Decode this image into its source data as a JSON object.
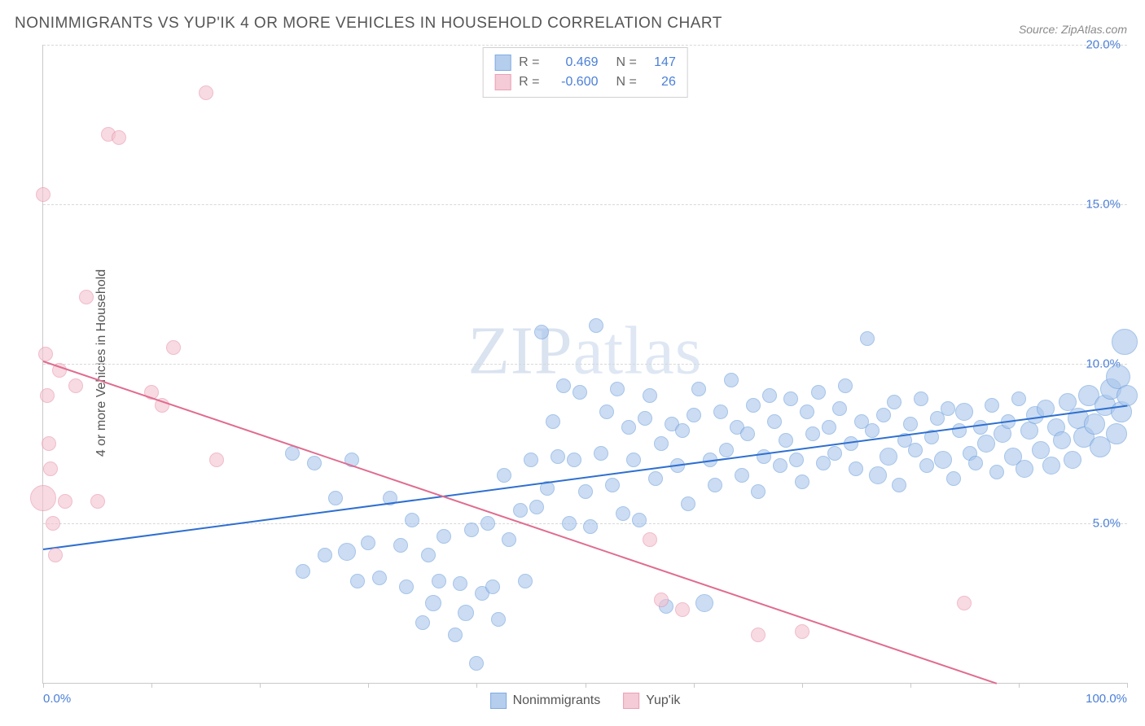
{
  "title": "NONIMMIGRANTS VS YUP'IK 4 OR MORE VEHICLES IN HOUSEHOLD CORRELATION CHART",
  "source": "Source: ZipAtlas.com",
  "watermark": "ZIPatlas",
  "ylabel": "4 or more Vehicles in Household",
  "chart": {
    "type": "scatter",
    "xlim": [
      0,
      100
    ],
    "ylim": [
      0,
      20
    ],
    "xtick_positions": [
      0,
      10,
      20,
      30,
      40,
      50,
      60,
      70,
      80,
      90,
      100
    ],
    "xtick_labels": {
      "0": "0.0%",
      "100": "100.0%"
    },
    "ytick_positions": [
      5,
      10,
      15,
      20
    ],
    "ytick_labels": {
      "5": "5.0%",
      "10": "10.0%",
      "15": "15.0%",
      "20": "20.0%"
    },
    "background_color": "#ffffff",
    "grid_color": "#d8d8d8",
    "axis_color": "#c9c9c9",
    "axis_label_color": "#4a7fd8",
    "title_color": "#555555",
    "title_fontsize": 19,
    "label_fontsize": 16,
    "tick_fontsize": 15
  },
  "series": [
    {
      "name": "Nonimmigrants",
      "fill_color": "#a9c6ec",
      "fill_opacity": 0.6,
      "stroke_color": "#6b9ddb",
      "stroke_width": 1,
      "r_value": "0.469",
      "n_value": "147",
      "trend": {
        "x1": 0,
        "y1": 4.2,
        "x2": 100,
        "y2": 8.7,
        "color": "#2e6fd0",
        "width": 2
      },
      "points": [
        {
          "x": 23,
          "y": 7.2,
          "r": 9
        },
        {
          "x": 24,
          "y": 3.5,
          "r": 9
        },
        {
          "x": 25,
          "y": 6.9,
          "r": 9
        },
        {
          "x": 26,
          "y": 4.0,
          "r": 9
        },
        {
          "x": 27,
          "y": 5.8,
          "r": 9
        },
        {
          "x": 28,
          "y": 4.1,
          "r": 11
        },
        {
          "x": 28.5,
          "y": 7.0,
          "r": 9
        },
        {
          "x": 29,
          "y": 3.2,
          "r": 9
        },
        {
          "x": 30,
          "y": 4.4,
          "r": 9
        },
        {
          "x": 31,
          "y": 3.3,
          "r": 9
        },
        {
          "x": 32,
          "y": 5.8,
          "r": 9
        },
        {
          "x": 33,
          "y": 4.3,
          "r": 9
        },
        {
          "x": 33.5,
          "y": 3.0,
          "r": 9
        },
        {
          "x": 34,
          "y": 5.1,
          "r": 9
        },
        {
          "x": 35,
          "y": 1.9,
          "r": 9
        },
        {
          "x": 35.5,
          "y": 4.0,
          "r": 9
        },
        {
          "x": 36,
          "y": 2.5,
          "r": 10
        },
        {
          "x": 36.5,
          "y": 3.2,
          "r": 9
        },
        {
          "x": 37,
          "y": 4.6,
          "r": 9
        },
        {
          "x": 38,
          "y": 1.5,
          "r": 9
        },
        {
          "x": 38.5,
          "y": 3.1,
          "r": 9
        },
        {
          "x": 39,
          "y": 2.2,
          "r": 10
        },
        {
          "x": 39.5,
          "y": 4.8,
          "r": 9
        },
        {
          "x": 40,
          "y": 0.6,
          "r": 9
        },
        {
          "x": 40.5,
          "y": 2.8,
          "r": 9
        },
        {
          "x": 41,
          "y": 5.0,
          "r": 9
        },
        {
          "x": 41.5,
          "y": 3.0,
          "r": 9
        },
        {
          "x": 42,
          "y": 2.0,
          "r": 9
        },
        {
          "x": 42.5,
          "y": 6.5,
          "r": 9
        },
        {
          "x": 43,
          "y": 4.5,
          "r": 9
        },
        {
          "x": 44,
          "y": 5.4,
          "r": 9
        },
        {
          "x": 44.5,
          "y": 3.2,
          "r": 9
        },
        {
          "x": 45,
          "y": 7.0,
          "r": 9
        },
        {
          "x": 45.5,
          "y": 5.5,
          "r": 9
        },
        {
          "x": 46,
          "y": 11.0,
          "r": 9
        },
        {
          "x": 46.5,
          "y": 6.1,
          "r": 9
        },
        {
          "x": 47,
          "y": 8.2,
          "r": 9
        },
        {
          "x": 47.5,
          "y": 7.1,
          "r": 9
        },
        {
          "x": 48,
          "y": 9.3,
          "r": 9
        },
        {
          "x": 48.5,
          "y": 5.0,
          "r": 9
        },
        {
          "x": 49,
          "y": 7.0,
          "r": 9
        },
        {
          "x": 49.5,
          "y": 9.1,
          "r": 9
        },
        {
          "x": 50,
          "y": 6.0,
          "r": 9
        },
        {
          "x": 50.5,
          "y": 4.9,
          "r": 9
        },
        {
          "x": 51,
          "y": 11.2,
          "r": 9
        },
        {
          "x": 51.5,
          "y": 7.2,
          "r": 9
        },
        {
          "x": 52,
          "y": 8.5,
          "r": 9
        },
        {
          "x": 52.5,
          "y": 6.2,
          "r": 9
        },
        {
          "x": 53,
          "y": 9.2,
          "r": 9
        },
        {
          "x": 53.5,
          "y": 5.3,
          "r": 9
        },
        {
          "x": 54,
          "y": 8.0,
          "r": 9
        },
        {
          "x": 54.5,
          "y": 7.0,
          "r": 9
        },
        {
          "x": 55,
          "y": 5.1,
          "r": 9
        },
        {
          "x": 55.5,
          "y": 8.3,
          "r": 9
        },
        {
          "x": 56,
          "y": 9.0,
          "r": 9
        },
        {
          "x": 56.5,
          "y": 6.4,
          "r": 9
        },
        {
          "x": 57,
          "y": 7.5,
          "r": 9
        },
        {
          "x": 57.5,
          "y": 2.4,
          "r": 9
        },
        {
          "x": 58,
          "y": 8.1,
          "r": 9
        },
        {
          "x": 58.5,
          "y": 6.8,
          "r": 9
        },
        {
          "x": 59,
          "y": 7.9,
          "r": 9
        },
        {
          "x": 59.5,
          "y": 5.6,
          "r": 9
        },
        {
          "x": 60,
          "y": 8.4,
          "r": 9
        },
        {
          "x": 60.5,
          "y": 9.2,
          "r": 9
        },
        {
          "x": 61,
          "y": 2.5,
          "r": 11
        },
        {
          "x": 61.5,
          "y": 7.0,
          "r": 9
        },
        {
          "x": 62,
          "y": 6.2,
          "r": 9
        },
        {
          "x": 62.5,
          "y": 8.5,
          "r": 9
        },
        {
          "x": 63,
          "y": 7.3,
          "r": 9
        },
        {
          "x": 63.5,
          "y": 9.5,
          "r": 9
        },
        {
          "x": 64,
          "y": 8.0,
          "r": 9
        },
        {
          "x": 64.5,
          "y": 6.5,
          "r": 9
        },
        {
          "x": 65,
          "y": 7.8,
          "r": 9
        },
        {
          "x": 65.5,
          "y": 8.7,
          "r": 9
        },
        {
          "x": 66,
          "y": 6.0,
          "r": 9
        },
        {
          "x": 66.5,
          "y": 7.1,
          "r": 9
        },
        {
          "x": 67,
          "y": 9.0,
          "r": 9
        },
        {
          "x": 67.5,
          "y": 8.2,
          "r": 9
        },
        {
          "x": 68,
          "y": 6.8,
          "r": 9
        },
        {
          "x": 68.5,
          "y": 7.6,
          "r": 9
        },
        {
          "x": 69,
          "y": 8.9,
          "r": 9
        },
        {
          "x": 69.5,
          "y": 7.0,
          "r": 9
        },
        {
          "x": 70,
          "y": 6.3,
          "r": 9
        },
        {
          "x": 70.5,
          "y": 8.5,
          "r": 9
        },
        {
          "x": 71,
          "y": 7.8,
          "r": 9
        },
        {
          "x": 71.5,
          "y": 9.1,
          "r": 9
        },
        {
          "x": 72,
          "y": 6.9,
          "r": 9
        },
        {
          "x": 72.5,
          "y": 8.0,
          "r": 9
        },
        {
          "x": 73,
          "y": 7.2,
          "r": 9
        },
        {
          "x": 73.5,
          "y": 8.6,
          "r": 9
        },
        {
          "x": 74,
          "y": 9.3,
          "r": 9
        },
        {
          "x": 74.5,
          "y": 7.5,
          "r": 9
        },
        {
          "x": 75,
          "y": 6.7,
          "r": 9
        },
        {
          "x": 75.5,
          "y": 8.2,
          "r": 9
        },
        {
          "x": 76,
          "y": 10.8,
          "r": 9
        },
        {
          "x": 76.5,
          "y": 7.9,
          "r": 9
        },
        {
          "x": 77,
          "y": 6.5,
          "r": 11
        },
        {
          "x": 77.5,
          "y": 8.4,
          "r": 9
        },
        {
          "x": 78,
          "y": 7.1,
          "r": 11
        },
        {
          "x": 78.5,
          "y": 8.8,
          "r": 9
        },
        {
          "x": 79,
          "y": 6.2,
          "r": 9
        },
        {
          "x": 79.5,
          "y": 7.6,
          "r": 9
        },
        {
          "x": 80,
          "y": 8.1,
          "r": 9
        },
        {
          "x": 80.5,
          "y": 7.3,
          "r": 9
        },
        {
          "x": 81,
          "y": 8.9,
          "r": 9
        },
        {
          "x": 81.5,
          "y": 6.8,
          "r": 9
        },
        {
          "x": 82,
          "y": 7.7,
          "r": 9
        },
        {
          "x": 82.5,
          "y": 8.3,
          "r": 9
        },
        {
          "x": 83,
          "y": 7.0,
          "r": 11
        },
        {
          "x": 83.5,
          "y": 8.6,
          "r": 9
        },
        {
          "x": 84,
          "y": 6.4,
          "r": 9
        },
        {
          "x": 84.5,
          "y": 7.9,
          "r": 9
        },
        {
          "x": 85,
          "y": 8.5,
          "r": 11
        },
        {
          "x": 85.5,
          "y": 7.2,
          "r": 9
        },
        {
          "x": 86,
          "y": 6.9,
          "r": 9
        },
        {
          "x": 86.5,
          "y": 8.0,
          "r": 9
        },
        {
          "x": 87,
          "y": 7.5,
          "r": 11
        },
        {
          "x": 87.5,
          "y": 8.7,
          "r": 9
        },
        {
          "x": 88,
          "y": 6.6,
          "r": 9
        },
        {
          "x": 88.5,
          "y": 7.8,
          "r": 11
        },
        {
          "x": 89,
          "y": 8.2,
          "r": 9
        },
        {
          "x": 89.5,
          "y": 7.1,
          "r": 11
        },
        {
          "x": 90,
          "y": 8.9,
          "r": 9
        },
        {
          "x": 90.5,
          "y": 6.7,
          "r": 11
        },
        {
          "x": 91,
          "y": 7.9,
          "r": 11
        },
        {
          "x": 91.5,
          "y": 8.4,
          "r": 11
        },
        {
          "x": 92,
          "y": 7.3,
          "r": 11
        },
        {
          "x": 92.5,
          "y": 8.6,
          "r": 11
        },
        {
          "x": 93,
          "y": 6.8,
          "r": 11
        },
        {
          "x": 93.5,
          "y": 8.0,
          "r": 11
        },
        {
          "x": 94,
          "y": 7.6,
          "r": 11
        },
        {
          "x": 94.5,
          "y": 8.8,
          "r": 11
        },
        {
          "x": 95,
          "y": 7.0,
          "r": 11
        },
        {
          "x": 95.5,
          "y": 8.3,
          "r": 13
        },
        {
          "x": 96,
          "y": 7.7,
          "r": 13
        },
        {
          "x": 96.5,
          "y": 9.0,
          "r": 13
        },
        {
          "x": 97,
          "y": 8.1,
          "r": 13
        },
        {
          "x": 97.5,
          "y": 7.4,
          "r": 13
        },
        {
          "x": 98,
          "y": 8.7,
          "r": 13
        },
        {
          "x": 98.5,
          "y": 9.2,
          "r": 13
        },
        {
          "x": 99,
          "y": 7.8,
          "r": 13
        },
        {
          "x": 99.2,
          "y": 9.6,
          "r": 15
        },
        {
          "x": 99.5,
          "y": 8.5,
          "r": 13
        },
        {
          "x": 99.8,
          "y": 10.7,
          "r": 16
        },
        {
          "x": 100,
          "y": 9.0,
          "r": 13
        }
      ]
    },
    {
      "name": "Yup'ik",
      "fill_color": "#f3c2cf",
      "fill_opacity": 0.6,
      "stroke_color": "#e890a8",
      "stroke_width": 1,
      "r_value": "-0.600",
      "n_value": "26",
      "trend": {
        "x1": 0,
        "y1": 10.1,
        "x2": 88,
        "y2": 0.0,
        "color": "#e06c8f",
        "width": 2
      },
      "points": [
        {
          "x": 0,
          "y": 15.3,
          "r": 9
        },
        {
          "x": 0.2,
          "y": 10.3,
          "r": 9
        },
        {
          "x": 0.4,
          "y": 9.0,
          "r": 9
        },
        {
          "x": 0.5,
          "y": 7.5,
          "r": 9
        },
        {
          "x": 0.7,
          "y": 6.7,
          "r": 9
        },
        {
          "x": 0,
          "y": 5.8,
          "r": 16
        },
        {
          "x": 0.9,
          "y": 5.0,
          "r": 9
        },
        {
          "x": 1.1,
          "y": 4.0,
          "r": 9
        },
        {
          "x": 1.5,
          "y": 9.8,
          "r": 9
        },
        {
          "x": 2,
          "y": 5.7,
          "r": 9
        },
        {
          "x": 3,
          "y": 9.3,
          "r": 9
        },
        {
          "x": 4,
          "y": 12.1,
          "r": 9
        },
        {
          "x": 5,
          "y": 5.7,
          "r": 9
        },
        {
          "x": 6,
          "y": 17.2,
          "r": 9
        },
        {
          "x": 7,
          "y": 17.1,
          "r": 9
        },
        {
          "x": 10,
          "y": 9.1,
          "r": 9
        },
        {
          "x": 11,
          "y": 8.7,
          "r": 9
        },
        {
          "x": 12,
          "y": 10.5,
          "r": 9
        },
        {
          "x": 15,
          "y": 18.5,
          "r": 9
        },
        {
          "x": 16,
          "y": 7.0,
          "r": 9
        },
        {
          "x": 57,
          "y": 2.6,
          "r": 9
        },
        {
          "x": 59,
          "y": 2.3,
          "r": 9
        },
        {
          "x": 66,
          "y": 1.5,
          "r": 9
        },
        {
          "x": 70,
          "y": 1.6,
          "r": 9
        },
        {
          "x": 85,
          "y": 2.5,
          "r": 9
        },
        {
          "x": 56,
          "y": 4.5,
          "r": 9
        }
      ]
    }
  ],
  "legend_top": {
    "r_label": "R =",
    "n_label": "N ="
  },
  "legend_bottom": [
    {
      "label": "Nonimmigrants",
      "fill": "#a9c6ec",
      "stroke": "#6b9ddb"
    },
    {
      "label": "Yup'ik",
      "fill": "#f3c2cf",
      "stroke": "#e890a8"
    }
  ]
}
